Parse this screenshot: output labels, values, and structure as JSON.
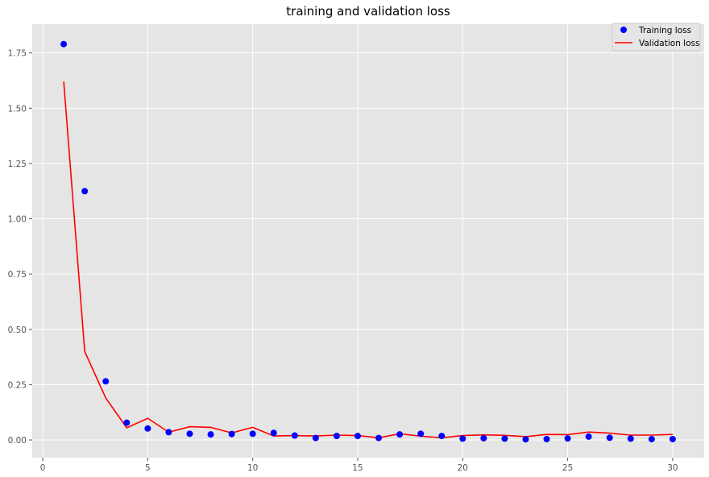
{
  "chart_data": {
    "type": "scatter",
    "title": "training and validation loss",
    "xlabel": "",
    "ylabel": "",
    "xlim": [
      -0.5,
      31.5
    ],
    "ylim": [
      -0.08,
      1.88
    ],
    "x_ticks": [
      0,
      5,
      10,
      15,
      20,
      25,
      30
    ],
    "x_tick_labels": [
      "0",
      "5",
      "10",
      "15",
      "20",
      "25",
      "30"
    ],
    "y_ticks": [
      0.0,
      0.25,
      0.5,
      0.75,
      1.0,
      1.25,
      1.5,
      1.75
    ],
    "y_tick_labels": [
      "0.00",
      "0.25",
      "0.50",
      "0.75",
      "1.00",
      "1.25",
      "1.50",
      "1.75"
    ],
    "grid": true,
    "legend_position": "top-right",
    "x": [
      1,
      2,
      3,
      4,
      5,
      6,
      7,
      8,
      9,
      10,
      11,
      12,
      13,
      14,
      15,
      16,
      17,
      18,
      19,
      20,
      21,
      22,
      23,
      24,
      25,
      26,
      27,
      28,
      29,
      30
    ],
    "series": [
      {
        "name": "Training loss",
        "kind": "scatter",
        "color": "#0000ff",
        "values": [
          1.79,
          1.125,
          0.265,
          0.078,
          0.052,
          0.035,
          0.028,
          0.025,
          0.027,
          0.028,
          0.032,
          0.02,
          0.009,
          0.018,
          0.018,
          0.009,
          0.025,
          0.028,
          0.018,
          0.006,
          0.008,
          0.006,
          0.003,
          0.004,
          0.007,
          0.015,
          0.01,
          0.006,
          0.004,
          0.004
        ]
      },
      {
        "name": "Validation loss",
        "kind": "line",
        "color": "#ff0000",
        "values": [
          1.62,
          0.4,
          0.19,
          0.055,
          0.098,
          0.035,
          0.06,
          0.057,
          0.032,
          0.057,
          0.018,
          0.02,
          0.018,
          0.022,
          0.02,
          0.01,
          0.028,
          0.017,
          0.01,
          0.02,
          0.023,
          0.021,
          0.015,
          0.025,
          0.024,
          0.036,
          0.031,
          0.022,
          0.022,
          0.025
        ]
      }
    ]
  },
  "style": {
    "plot_background": "#e5e5e5",
    "grid_color": "#ffffff"
  }
}
